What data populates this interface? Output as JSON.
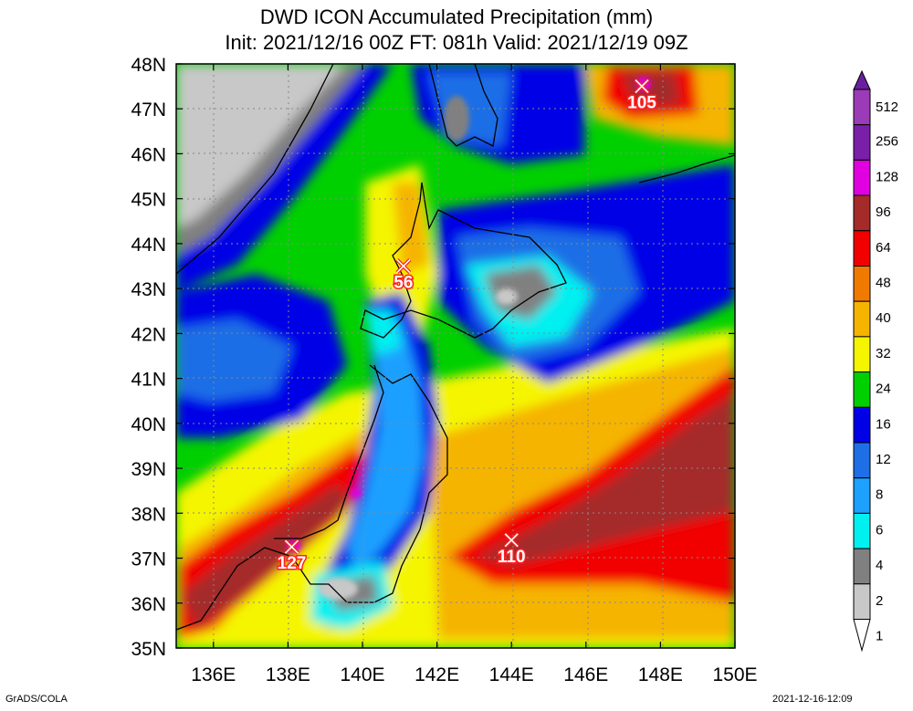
{
  "title": {
    "line1": "DWD ICON Accumulated Precipitation (mm)",
    "line2": "Init: 2021/12/16 00Z  FT: 081h  Valid: 2021/12/19 09Z"
  },
  "axes": {
    "lon_labels": [
      "136E",
      "138E",
      "140E",
      "142E",
      "144E",
      "146E",
      "148E",
      "150E"
    ],
    "lat_labels": [
      "48N",
      "47N",
      "46N",
      "45N",
      "44N",
      "43N",
      "42N",
      "41N",
      "40N",
      "39N",
      "38N",
      "37N",
      "36N",
      "35N"
    ]
  },
  "maxima": [
    {
      "label": "105",
      "lon": 147.5,
      "lat": 47.5
    },
    {
      "label": "56",
      "lon": 141.1,
      "lat": 43.5
    },
    {
      "label": "127",
      "lon": 138.1,
      "lat": 37.25
    },
    {
      "label": "110",
      "lon": 144.0,
      "lat": 37.4
    }
  ],
  "legend": {
    "levels": [
      "512",
      "256",
      "128",
      "96",
      "64",
      "48",
      "40",
      "32",
      "24",
      "16",
      "12",
      "8",
      "6",
      "4",
      "2",
      "1"
    ],
    "colors": [
      "#9c3bb8",
      "#7a1fa8",
      "#e000e0",
      "#a52a2a",
      "#f20000",
      "#f07a00",
      "#f5b400",
      "#f5f500",
      "#00d000",
      "#0000e6",
      "#1e6ee6",
      "#1ea0ff",
      "#00f0f0",
      "#808080",
      "#c8c8c8",
      "#ffffff"
    ],
    "top_color": "#6a1fa0"
  },
  "footer": {
    "left": "GrADS/COLA",
    "right": "2021-12-16-12:09"
  }
}
